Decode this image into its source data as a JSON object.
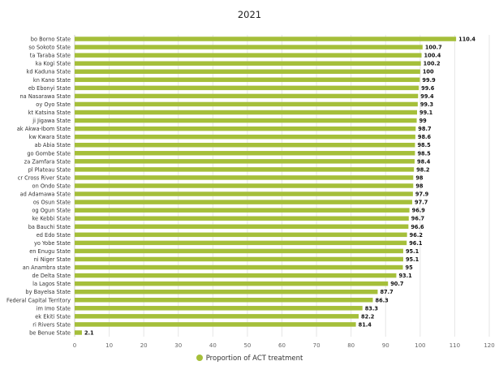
{
  "chart_data": {
    "type": "bar",
    "orientation": "horizontal",
    "title": "2021",
    "xlim": [
      0,
      120
    ],
    "x_ticks": [
      0,
      10,
      20,
      30,
      40,
      50,
      60,
      70,
      80,
      90,
      100,
      110,
      120
    ],
    "grid": true,
    "legend_position": "bottom",
    "bar_color": "#a5bf3a",
    "categories": [
      "bo Borno State",
      "so Sokoto State",
      "ta Taraba State",
      "ka Kogi State",
      "kd Kaduna State",
      "kn Kano State",
      "eb Ebonyi State",
      "na Nasarawa State",
      "oy Oyo State",
      "kt Katsina State",
      "ji Jigawa State",
      "ak Akwa-Ibom State",
      "kw Kwara State",
      "ab Abia State",
      "go Gombe State",
      "za Zamfara State",
      "pl Plateau State",
      "cr Cross River State",
      "on Ondo State",
      "ad Adamawa State",
      "os Osun State",
      "og Ogun State",
      "ke Kebbi State",
      "ba Bauchi State",
      "ed Edo State",
      "yo Yobe State",
      "en Enugu State",
      "ni Niger State",
      "an Anambra state",
      "de Delta State",
      "la Lagos State",
      "by Bayelsa State",
      "Federal Capital Territory",
      "im Imo State",
      "ek Ekiti State",
      "ri Rivers State",
      "be Benue State"
    ],
    "series": [
      {
        "name": "Proportion of ACT treatment",
        "values": [
          110.4,
          100.7,
          100.4,
          100.2,
          100,
          99.9,
          99.6,
          99.4,
          99.3,
          99.1,
          99,
          98.7,
          98.6,
          98.5,
          98.5,
          98.4,
          98.2,
          98,
          98,
          97.9,
          97.7,
          96.9,
          96.7,
          96.6,
          96.2,
          96.1,
          95.1,
          95.1,
          95,
          93.1,
          90.7,
          87.7,
          86.3,
          83.3,
          82.2,
          81.4,
          2.1
        ]
      }
    ]
  }
}
